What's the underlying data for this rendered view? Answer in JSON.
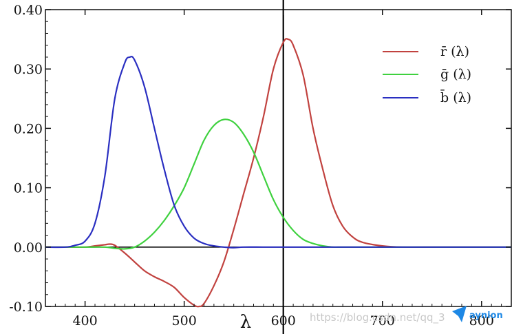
{
  "chart_data": {
    "type": "line",
    "title": "",
    "xlabel": "λ",
    "ylabel": "",
    "xlim": [
      360,
      830
    ],
    "ylim": [
      -0.1,
      0.4
    ],
    "x_ticks": [
      400,
      500,
      600,
      700,
      800
    ],
    "x_tick_labels": [
      "400",
      "500",
      "600",
      "700",
      "800"
    ],
    "y_ticks": [
      -0.1,
      0.0,
      0.1,
      0.2,
      0.3,
      0.4
    ],
    "y_tick_labels": [
      "-0.10",
      "0.00",
      "0.10",
      "0.20",
      "0.30",
      "0.40"
    ],
    "grid": false,
    "legend_position": "top-right",
    "reference_lines": [
      {
        "orientation": "horizontal",
        "value": 0.0,
        "color": "#000000"
      },
      {
        "orientation": "vertical",
        "value": 600,
        "color": "#000000"
      }
    ],
    "series": [
      {
        "name": "r̄ (λ)",
        "color": "#c1423f",
        "x": [
          360,
          380,
          400,
          410,
          420,
          425,
          430,
          440,
          450,
          460,
          470,
          480,
          490,
          500,
          510,
          515,
          520,
          530,
          540,
          550,
          560,
          570,
          580,
          590,
          600,
          605,
          610,
          620,
          630,
          640,
          650,
          660,
          670,
          680,
          700,
          720,
          760,
          830
        ],
        "y": [
          0.0,
          0.0,
          0.0,
          0.002,
          0.004,
          0.005,
          0.003,
          -0.01,
          -0.025,
          -0.04,
          -0.05,
          -0.058,
          -0.068,
          -0.085,
          -0.098,
          -0.1,
          -0.095,
          -0.065,
          -0.025,
          0.03,
          0.09,
          0.15,
          0.22,
          0.3,
          0.345,
          0.35,
          0.34,
          0.29,
          0.2,
          0.13,
          0.07,
          0.035,
          0.017,
          0.008,
          0.002,
          0.0,
          0.0,
          0.0
        ]
      },
      {
        "name": "ḡ (λ)",
        "color": "#3fd13f",
        "x": [
          360,
          400,
          420,
          430,
          440,
          450,
          460,
          470,
          480,
          490,
          500,
          510,
          520,
          530,
          540,
          550,
          560,
          570,
          580,
          590,
          600,
          610,
          620,
          630,
          640,
          650,
          660,
          680,
          700,
          830
        ],
        "y": [
          0.0,
          0.0,
          0.0,
          -0.002,
          -0.003,
          0.0,
          0.01,
          0.025,
          0.045,
          0.07,
          0.1,
          0.14,
          0.18,
          0.205,
          0.215,
          0.21,
          0.19,
          0.16,
          0.12,
          0.08,
          0.05,
          0.028,
          0.013,
          0.006,
          0.002,
          0.0,
          0.0,
          0.0,
          0.0,
          0.0
        ]
      },
      {
        "name": "b̄ (λ)",
        "color": "#2a2fc1",
        "x": [
          360,
          380,
          390,
          400,
          410,
          420,
          430,
          440,
          445,
          450,
          460,
          470,
          480,
          490,
          500,
          510,
          520,
          530,
          540,
          550,
          560,
          580,
          600,
          830
        ],
        "y": [
          0.0,
          0.0,
          0.003,
          0.01,
          0.04,
          0.12,
          0.25,
          0.31,
          0.32,
          0.315,
          0.27,
          0.2,
          0.13,
          0.07,
          0.035,
          0.015,
          0.006,
          0.002,
          0.0,
          -0.001,
          0.0,
          0.0,
          0.0,
          0.0
        ]
      }
    ]
  },
  "watermark": {
    "url_text": "https://blog.csdn.net/qq_3",
    "logo_text": "aynion"
  }
}
